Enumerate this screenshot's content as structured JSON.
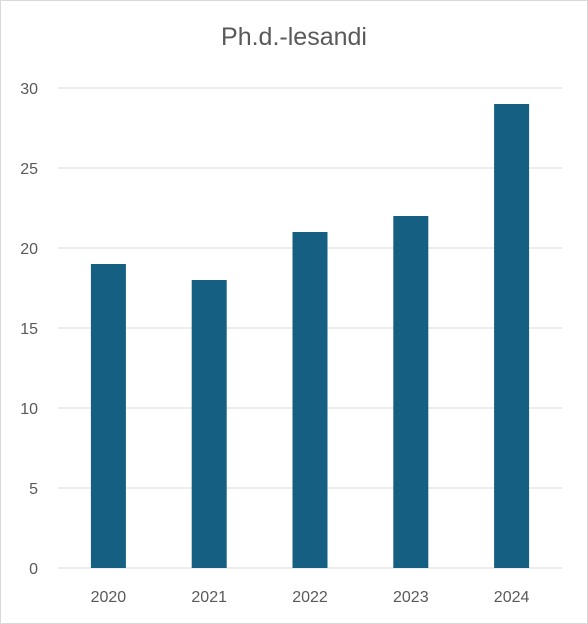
{
  "chart_data": {
    "type": "bar",
    "title": "Ph.d.-lesandi",
    "categories": [
      "2020",
      "2021",
      "2022",
      "2023",
      "2024"
    ],
    "values": [
      19,
      18,
      21,
      22,
      29
    ],
    "xlabel": "",
    "ylabel": "",
    "ylim": [
      0,
      30
    ],
    "yticks": [
      "0",
      "5",
      "10",
      "15",
      "20",
      "25",
      "30"
    ],
    "grid": true,
    "legend": "none",
    "bar_color": "#156082",
    "grid_color": "#d9d9d9"
  }
}
